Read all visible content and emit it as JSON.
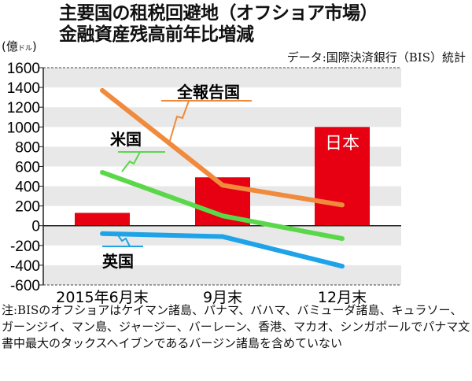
{
  "title_lines": [
    "主要国の租税回避地（オフショア市場）",
    "金融資産残高前年比増減"
  ],
  "unit": "(億ドル)",
  "source": "データ:国際決済銀行（BIS）統計",
  "note": "注:BISのオフショアはケイマン諸島、パナマ、バハマ、バミューダ諸島、キュラソー、ガーンジイ、マン島、ジャージー、バーレーン、香港、マカオ、シンガポールでパナマ文書中最大のタックスヘイブンであるバージン諸島を含めていない",
  "chart_data": {
    "type": "bar+line",
    "categories": [
      "2015年6月末",
      "9月末",
      "12月末"
    ],
    "ylim": [
      -600,
      1600
    ],
    "yticks": [
      1600,
      1400,
      1200,
      1000,
      800,
      600,
      400,
      200,
      0,
      -200,
      -400,
      -600
    ],
    "bars": {
      "name": "日本",
      "values": [
        130,
        490,
        1000
      ],
      "color": "#e60012"
    },
    "series": [
      {
        "name": "全報告国",
        "values": [
          1370,
          410,
          210
        ],
        "color": "#f08a3c"
      },
      {
        "name": "米国",
        "values": [
          540,
          100,
          -130
        ],
        "color": "#5ad84a"
      },
      {
        "name": "英国",
        "values": [
          -80,
          -110,
          -410
        ],
        "color": "#1fa3e8"
      }
    ],
    "grid": "alternating horizontal bands"
  }
}
